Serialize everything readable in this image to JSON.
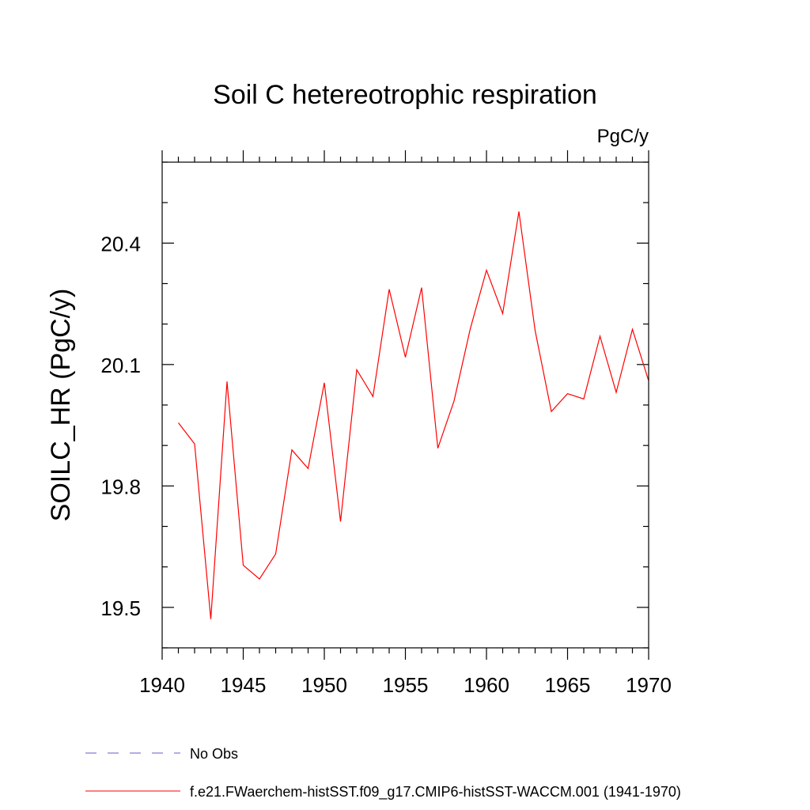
{
  "chart_data": {
    "type": "line",
    "title": "Soil C hetereotrophic respiration",
    "units": "PgC/y",
    "ylabel": "SOILC_HR  (PgC/y)",
    "xlabel": "",
    "xlim": [
      1940,
      1970
    ],
    "ylim": [
      19.4,
      20.6
    ],
    "xticks": [
      1940,
      1945,
      1950,
      1955,
      1960,
      1965,
      1970
    ],
    "xtick_labels": [
      "1940",
      "1945",
      "1950",
      "1955",
      "1960",
      "1965",
      "1970"
    ],
    "yticks": [
      19.5,
      19.8,
      20.1,
      20.4
    ],
    "ytick_labels": [
      "19.5",
      "19.8",
      "20.1",
      "20.4"
    ],
    "grid": false,
    "legend_position": "bottom",
    "legend": [
      {
        "label": "No Obs",
        "color": "#6a5acd",
        "style": "dashed"
      },
      {
        "label": "f.e21.FWaerchem-histSST.f09_g17.CMIP6-histSST-WACCM.001 (1941-1970)",
        "color": "#ff0000",
        "style": "solid"
      }
    ],
    "series": [
      {
        "name": "f.e21.FWaerchem-histSST.f09_g17.CMIP6-histSST-WACCM.001 (1941-1970)",
        "color": "#ff0000",
        "x": [
          1941,
          1942,
          1943,
          1944,
          1945,
          1946,
          1947,
          1948,
          1949,
          1950,
          1951,
          1952,
          1953,
          1954,
          1955,
          1956,
          1957,
          1958,
          1959,
          1960,
          1961,
          1962,
          1963,
          1964,
          1965,
          1966,
          1967,
          1968,
          1969,
          1970
        ],
        "y": [
          19.956,
          19.904,
          19.471,
          20.058,
          19.604,
          19.57,
          19.632,
          19.889,
          19.843,
          20.055,
          19.712,
          20.087,
          20.021,
          20.286,
          20.118,
          20.29,
          19.893,
          20.01,
          20.188,
          20.333,
          20.226,
          20.478,
          20.184,
          19.984,
          20.028,
          20.015,
          20.17,
          20.031,
          20.187,
          20.06
        ]
      }
    ]
  }
}
